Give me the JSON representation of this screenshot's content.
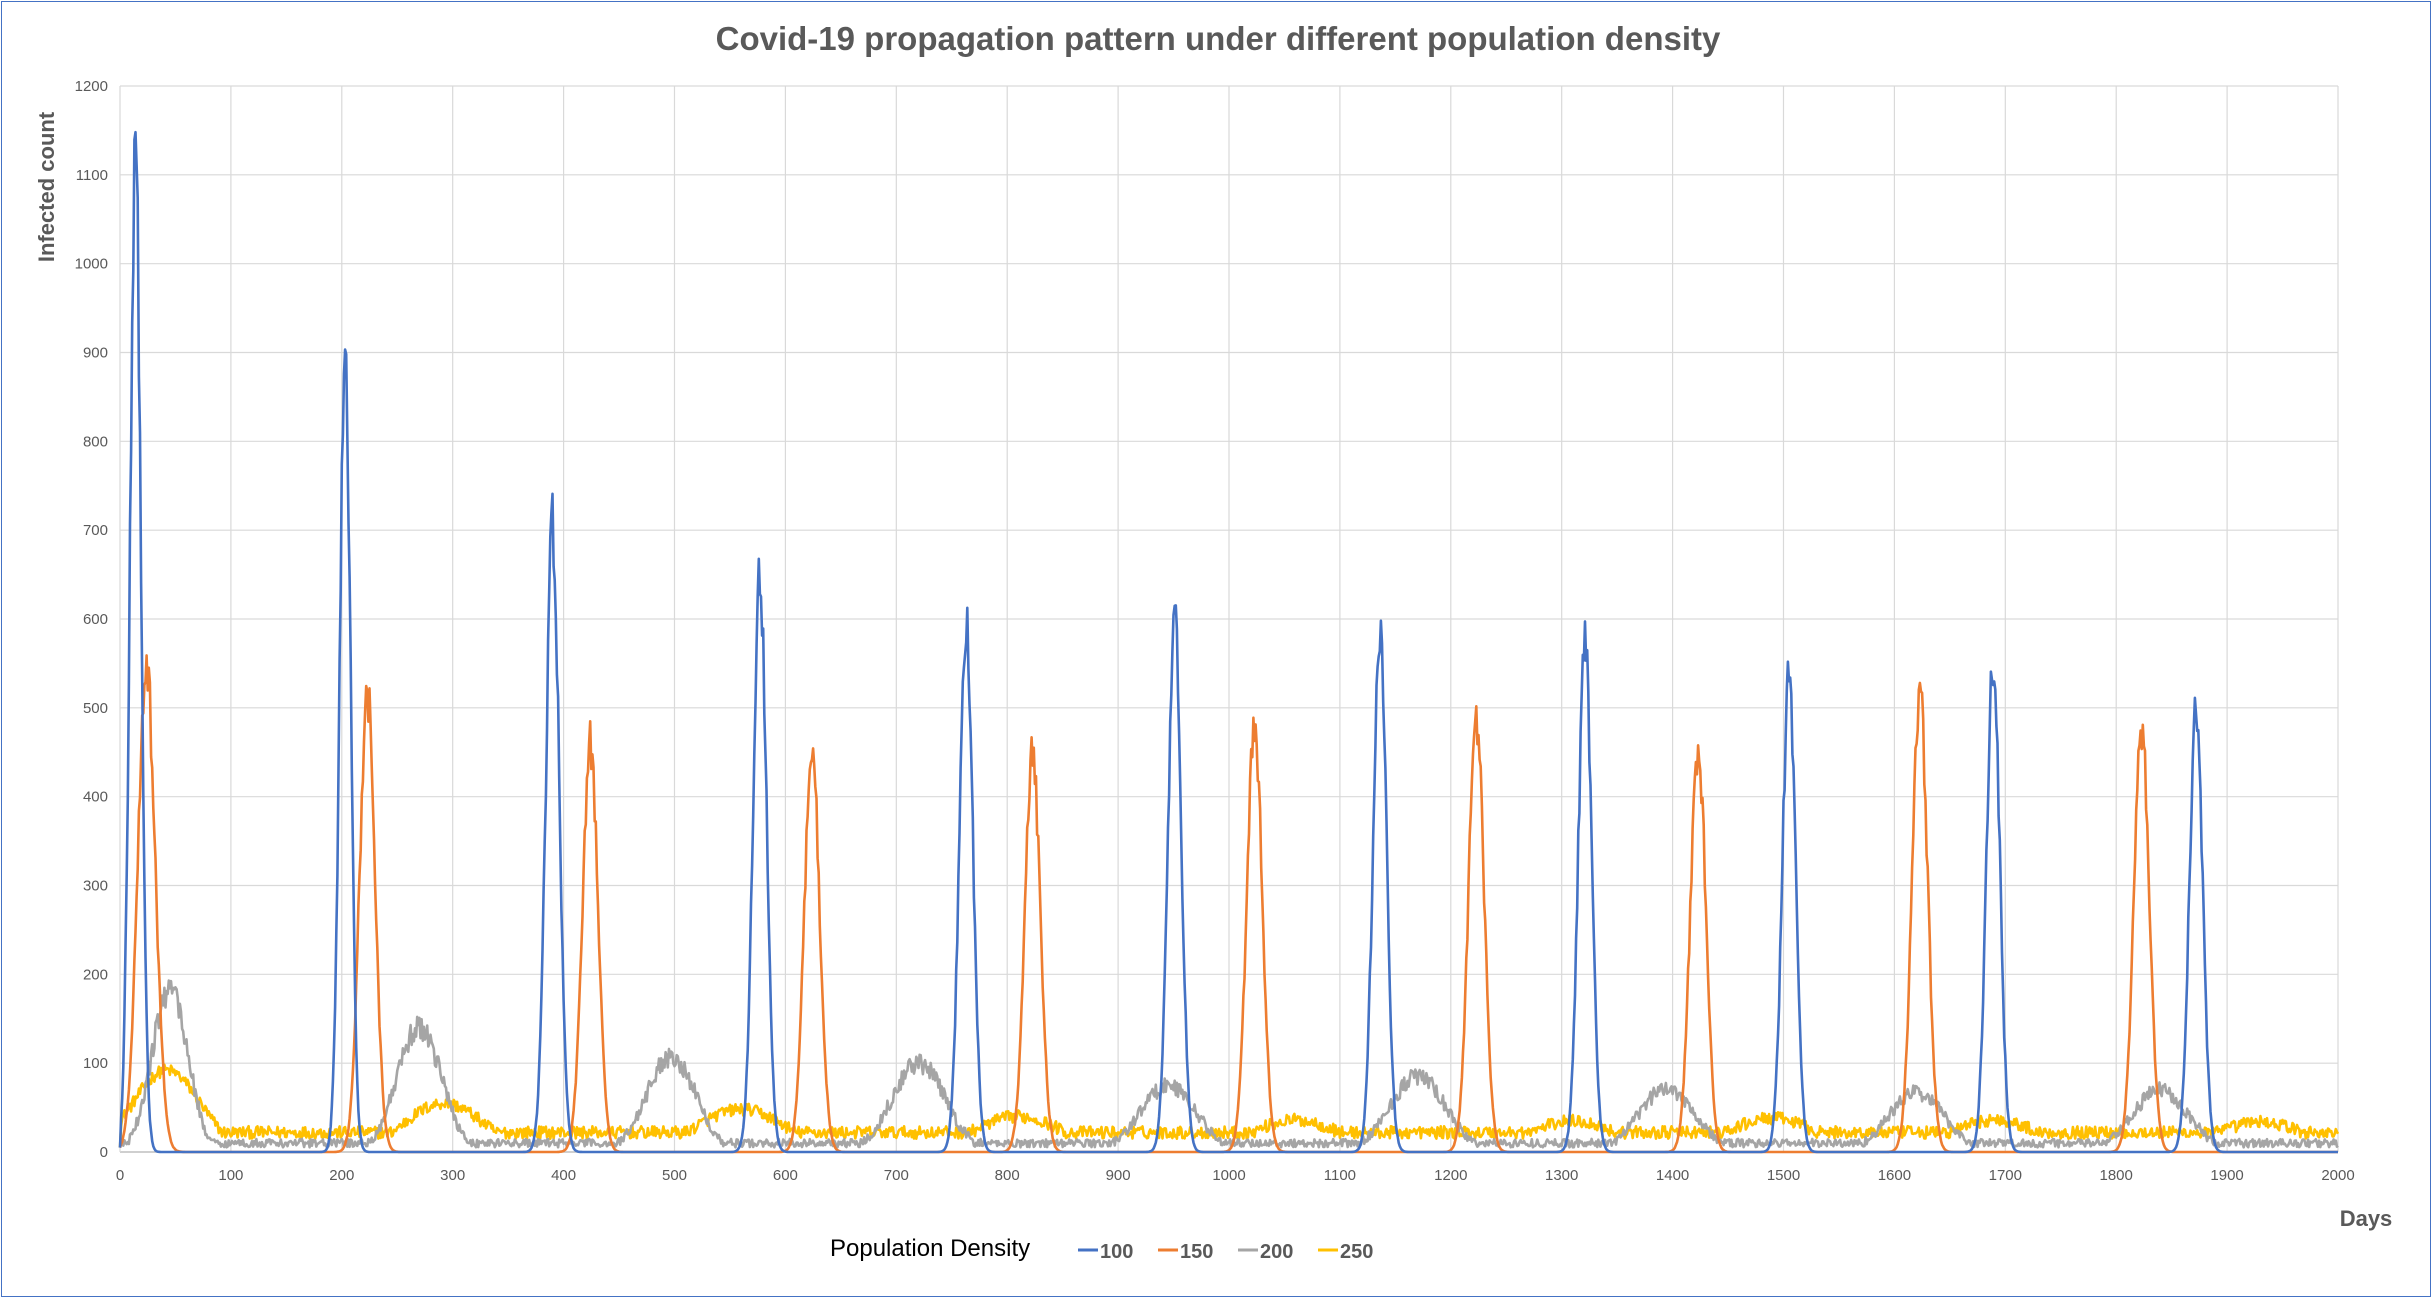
{
  "chart_data": {
    "type": "line",
    "title": "Covid-19 propagation pattern under different population density",
    "xlabel": "Days",
    "ylabel": "Infected count",
    "xlim": [
      0,
      2000
    ],
    "ylim": [
      0,
      1200
    ],
    "x_ticks": [
      0,
      100,
      200,
      300,
      400,
      500,
      600,
      700,
      800,
      900,
      1000,
      1100,
      1200,
      1300,
      1400,
      1500,
      1600,
      1700,
      1800,
      1900,
      2000
    ],
    "y_ticks": [
      0,
      100,
      200,
      300,
      400,
      500,
      600,
      700,
      800,
      900,
      1000,
      1100,
      1200
    ],
    "grid": true,
    "legend_title": "Population Density",
    "legend_position": "bottom",
    "series": [
      {
        "name": "100",
        "color": "#4472c4",
        "peaks": [
          {
            "x": 14,
            "y": 1110,
            "width": 5
          },
          {
            "x": 203,
            "y": 875,
            "width": 5
          },
          {
            "x": 390,
            "y": 700,
            "width": 6
          },
          {
            "x": 577,
            "y": 645,
            "width": 6
          },
          {
            "x": 763,
            "y": 600,
            "width": 6
          },
          {
            "x": 951,
            "y": 598,
            "width": 6
          },
          {
            "x": 1136,
            "y": 593,
            "width": 6
          },
          {
            "x": 1321,
            "y": 567,
            "width": 6
          },
          {
            "x": 1505,
            "y": 537,
            "width": 6
          },
          {
            "x": 1689,
            "y": 548,
            "width": 6
          },
          {
            "x": 1872,
            "y": 495,
            "width": 6
          }
        ]
      },
      {
        "name": "150",
        "color": "#ed7d31",
        "peaks": [
          {
            "x": 24,
            "y": 535,
            "width": 8
          },
          {
            "x": 223,
            "y": 513,
            "width": 7
          },
          {
            "x": 424,
            "y": 458,
            "width": 7
          },
          {
            "x": 624,
            "y": 444,
            "width": 7
          },
          {
            "x": 823,
            "y": 446,
            "width": 7
          },
          {
            "x": 1023,
            "y": 473,
            "width": 7
          },
          {
            "x": 1223,
            "y": 488,
            "width": 7
          },
          {
            "x": 1423,
            "y": 453,
            "width": 7
          },
          {
            "x": 1623,
            "y": 511,
            "width": 7
          },
          {
            "x": 1823,
            "y": 476,
            "width": 7
          }
        ]
      },
      {
        "name": "200",
        "color": "#a5a5a5",
        "peaks": [
          {
            "x": 45,
            "y": 185,
            "width": 16
          },
          {
            "x": 270,
            "y": 140,
            "width": 20
          },
          {
            "x": 497,
            "y": 108,
            "width": 22
          },
          {
            "x": 720,
            "y": 100,
            "width": 24
          },
          {
            "x": 945,
            "y": 75,
            "width": 25
          },
          {
            "x": 1170,
            "y": 85,
            "width": 25
          },
          {
            "x": 1395,
            "y": 72,
            "width": 25
          },
          {
            "x": 1620,
            "y": 67,
            "width": 25
          },
          {
            "x": 1840,
            "y": 70,
            "width": 25
          }
        ]
      },
      {
        "name": "250",
        "color": "#ffc000",
        "peaks": [
          {
            "x": 42,
            "y": 92,
            "width": 30
          },
          {
            "x": 292,
            "y": 55,
            "width": 35
          },
          {
            "x": 560,
            "y": 48,
            "width": 40
          },
          {
            "x": 810,
            "y": 40,
            "width": 40
          },
          {
            "x": 1060,
            "y": 36,
            "width": 40
          },
          {
            "x": 1310,
            "y": 35,
            "width": 40
          },
          {
            "x": 1490,
            "y": 38,
            "width": 40
          },
          {
            "x": 1690,
            "y": 36,
            "width": 40
          },
          {
            "x": 1930,
            "y": 34,
            "width": 40
          }
        ]
      }
    ]
  }
}
